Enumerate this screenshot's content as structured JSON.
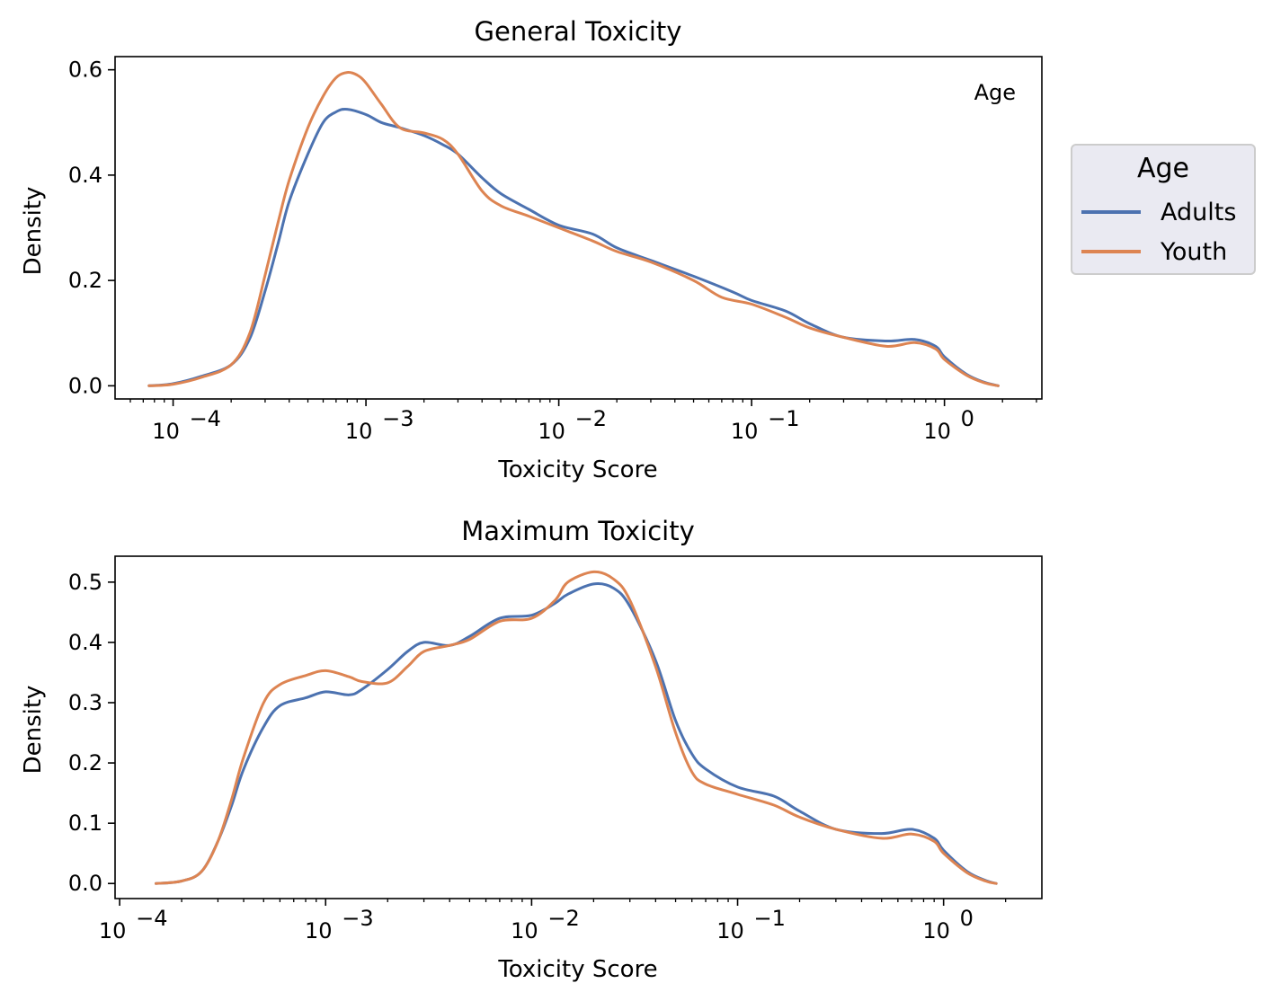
{
  "colors": {
    "Adults": "#4c72b0",
    "Youth": "#dd8452"
  },
  "legend": {
    "title": "Age",
    "items": [
      {
        "label": "Adults",
        "color": "#4c72b0"
      },
      {
        "label": "Youth",
        "color": "#dd8452"
      }
    ]
  },
  "chart_data": [
    {
      "type": "line",
      "title": "General Toxicity",
      "xlabel": "Toxicity Score",
      "ylabel": "Density",
      "xscale": "log",
      "xlim": [
        5e-05,
        3.2
      ],
      "ylim": [
        -0.025,
        0.625
      ],
      "xticks": [
        {
          "value": 0.0001,
          "base": "10",
          "exp": "−4"
        },
        {
          "value": 0.001,
          "base": "10",
          "exp": "−3"
        },
        {
          "value": 0.01,
          "base": "10",
          "exp": "−2"
        },
        {
          "value": 0.1,
          "base": "10",
          "exp": "−1"
        },
        {
          "value": 1,
          "base": "10",
          "exp": "0"
        }
      ],
      "yticks": [
        {
          "value": 0.0,
          "label": "0.0"
        },
        {
          "value": 0.2,
          "label": "0.2"
        },
        {
          "value": 0.4,
          "label": "0.4"
        },
        {
          "value": 0.6,
          "label": "0.6"
        }
      ],
      "annotation": "Age",
      "legend_position": "outside right",
      "grid": false,
      "series": [
        {
          "name": "Adults",
          "color": "#4c72b0",
          "points": [
            [
              7.5e-05,
              0.0
            ],
            [
              0.0001,
              0.004
            ],
            [
              0.00014,
              0.018
            ],
            [
              0.0002,
              0.04
            ],
            [
              0.00025,
              0.09
            ],
            [
              0.0003,
              0.18
            ],
            [
              0.00035,
              0.27
            ],
            [
              0.0004,
              0.35
            ],
            [
              0.0005,
              0.44
            ],
            [
              0.0006,
              0.5
            ],
            [
              0.0007,
              0.52
            ],
            [
              0.0008,
              0.525
            ],
            [
              0.001,
              0.515
            ],
            [
              0.0012,
              0.5
            ],
            [
              0.0015,
              0.49
            ],
            [
              0.002,
              0.475
            ],
            [
              0.0025,
              0.458
            ],
            [
              0.003,
              0.44
            ],
            [
              0.004,
              0.395
            ],
            [
              0.005,
              0.365
            ],
            [
              0.007,
              0.335
            ],
            [
              0.01,
              0.305
            ],
            [
              0.015,
              0.288
            ],
            [
              0.02,
              0.262
            ],
            [
              0.03,
              0.238
            ],
            [
              0.05,
              0.208
            ],
            [
              0.08,
              0.178
            ],
            [
              0.1,
              0.162
            ],
            [
              0.15,
              0.142
            ],
            [
              0.2,
              0.118
            ],
            [
              0.3,
              0.092
            ],
            [
              0.5,
              0.085
            ],
            [
              0.7,
              0.088
            ],
            [
              0.9,
              0.075
            ],
            [
              1.0,
              0.055
            ],
            [
              1.3,
              0.022
            ],
            [
              1.6,
              0.007
            ],
            [
              1.9,
              0.0
            ]
          ]
        },
        {
          "name": "Youth",
          "color": "#dd8452",
          "points": [
            [
              7.5e-05,
              0.0
            ],
            [
              0.0001,
              0.003
            ],
            [
              0.00014,
              0.016
            ],
            [
              0.0002,
              0.04
            ],
            [
              0.00025,
              0.1
            ],
            [
              0.0003,
              0.21
            ],
            [
              0.00035,
              0.31
            ],
            [
              0.0004,
              0.39
            ],
            [
              0.0005,
              0.49
            ],
            [
              0.0006,
              0.55
            ],
            [
              0.0007,
              0.585
            ],
            [
              0.0008,
              0.595
            ],
            [
              0.0009,
              0.59
            ],
            [
              0.001,
              0.575
            ],
            [
              0.0012,
              0.535
            ],
            [
              0.0015,
              0.49
            ],
            [
              0.002,
              0.48
            ],
            [
              0.0025,
              0.468
            ],
            [
              0.003,
              0.44
            ],
            [
              0.004,
              0.37
            ],
            [
              0.005,
              0.342
            ],
            [
              0.007,
              0.322
            ],
            [
              0.01,
              0.3
            ],
            [
              0.015,
              0.275
            ],
            [
              0.02,
              0.255
            ],
            [
              0.03,
              0.235
            ],
            [
              0.05,
              0.2
            ],
            [
              0.07,
              0.168
            ],
            [
              0.1,
              0.155
            ],
            [
              0.15,
              0.13
            ],
            [
              0.2,
              0.11
            ],
            [
              0.3,
              0.092
            ],
            [
              0.5,
              0.075
            ],
            [
              0.7,
              0.082
            ],
            [
              0.9,
              0.07
            ],
            [
              1.0,
              0.05
            ],
            [
              1.3,
              0.02
            ],
            [
              1.6,
              0.006
            ],
            [
              1.9,
              0.0
            ]
          ]
        }
      ]
    },
    {
      "type": "line",
      "title": "Maximum Toxicity",
      "xlabel": "Toxicity Score",
      "ylabel": "Density",
      "xscale": "log",
      "xlim": [
        9.5e-05,
        3.0
      ],
      "ylim": [
        -0.025,
        0.543
      ],
      "xticks": [
        {
          "value": 0.0001,
          "base": "10",
          "exp": "−4"
        },
        {
          "value": 0.001,
          "base": "10",
          "exp": "−3"
        },
        {
          "value": 0.01,
          "base": "10",
          "exp": "−2"
        },
        {
          "value": 0.1,
          "base": "10",
          "exp": "−1"
        },
        {
          "value": 1,
          "base": "10",
          "exp": "0"
        }
      ],
      "yticks": [
        {
          "value": 0.0,
          "label": "0.0"
        },
        {
          "value": 0.1,
          "label": "0.1"
        },
        {
          "value": 0.2,
          "label": "0.2"
        },
        {
          "value": 0.3,
          "label": "0.3"
        },
        {
          "value": 0.4,
          "label": "0.4"
        },
        {
          "value": 0.5,
          "label": "0.5"
        }
      ],
      "grid": false,
      "series": [
        {
          "name": "Adults",
          "color": "#4c72b0",
          "points": [
            [
              0.00015,
              0.0
            ],
            [
              0.0002,
              0.004
            ],
            [
              0.00025,
              0.02
            ],
            [
              0.0003,
              0.07
            ],
            [
              0.00035,
              0.13
            ],
            [
              0.0004,
              0.19
            ],
            [
              0.0005,
              0.26
            ],
            [
              0.0006,
              0.295
            ],
            [
              0.0008,
              0.308
            ],
            [
              0.001,
              0.318
            ],
            [
              0.0013,
              0.313
            ],
            [
              0.0015,
              0.322
            ],
            [
              0.002,
              0.355
            ],
            [
              0.0025,
              0.385
            ],
            [
              0.003,
              0.4
            ],
            [
              0.004,
              0.395
            ],
            [
              0.005,
              0.41
            ],
            [
              0.007,
              0.44
            ],
            [
              0.01,
              0.445
            ],
            [
              0.013,
              0.465
            ],
            [
              0.015,
              0.48
            ],
            [
              0.02,
              0.497
            ],
            [
              0.025,
              0.49
            ],
            [
              0.03,
              0.46
            ],
            [
              0.04,
              0.37
            ],
            [
              0.05,
              0.27
            ],
            [
              0.06,
              0.215
            ],
            [
              0.07,
              0.19
            ],
            [
              0.1,
              0.16
            ],
            [
              0.15,
              0.145
            ],
            [
              0.2,
              0.12
            ],
            [
              0.3,
              0.09
            ],
            [
              0.5,
              0.083
            ],
            [
              0.7,
              0.09
            ],
            [
              0.9,
              0.075
            ],
            [
              1.0,
              0.055
            ],
            [
              1.3,
              0.02
            ],
            [
              1.6,
              0.005
            ],
            [
              1.8,
              0.0
            ]
          ]
        },
        {
          "name": "Youth",
          "color": "#dd8452",
          "points": [
            [
              0.00015,
              0.0
            ],
            [
              0.0002,
              0.004
            ],
            [
              0.00025,
              0.02
            ],
            [
              0.0003,
              0.07
            ],
            [
              0.00035,
              0.14
            ],
            [
              0.0004,
              0.21
            ],
            [
              0.0005,
              0.3
            ],
            [
              0.0006,
              0.33
            ],
            [
              0.0008,
              0.345
            ],
            [
              0.001,
              0.353
            ],
            [
              0.0013,
              0.343
            ],
            [
              0.0015,
              0.335
            ],
            [
              0.002,
              0.333
            ],
            [
              0.0025,
              0.36
            ],
            [
              0.003,
              0.385
            ],
            [
              0.004,
              0.395
            ],
            [
              0.005,
              0.405
            ],
            [
              0.007,
              0.435
            ],
            [
              0.01,
              0.44
            ],
            [
              0.013,
              0.47
            ],
            [
              0.015,
              0.5
            ],
            [
              0.02,
              0.517
            ],
            [
              0.025,
              0.505
            ],
            [
              0.03,
              0.47
            ],
            [
              0.04,
              0.36
            ],
            [
              0.05,
              0.25
            ],
            [
              0.06,
              0.185
            ],
            [
              0.07,
              0.165
            ],
            [
              0.1,
              0.148
            ],
            [
              0.15,
              0.13
            ],
            [
              0.2,
              0.11
            ],
            [
              0.3,
              0.09
            ],
            [
              0.5,
              0.075
            ],
            [
              0.7,
              0.082
            ],
            [
              0.9,
              0.07
            ],
            [
              1.0,
              0.05
            ],
            [
              1.3,
              0.018
            ],
            [
              1.6,
              0.004
            ],
            [
              1.8,
              0.0
            ]
          ]
        }
      ]
    }
  ]
}
